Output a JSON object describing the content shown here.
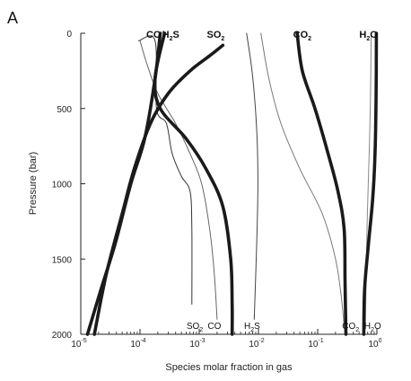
{
  "chart_data": {
    "type": "line",
    "panel_label": "A",
    "xlabel": "Species molar fraction in gas",
    "ylabel": "Pressure (bar)",
    "x_scale": "log",
    "xlim": [
      1e-05,
      1
    ],
    "x_ticks": [
      {
        "value": 1e-05,
        "base": "10",
        "exp": "-5"
      },
      {
        "value": 0.0001,
        "base": "10",
        "exp": "-4"
      },
      {
        "value": 0.001,
        "base": "10",
        "exp": "-3"
      },
      {
        "value": 0.01,
        "base": "10",
        "exp": "-2"
      },
      {
        "value": 0.1,
        "base": "10",
        "exp": "-1"
      },
      {
        "value": 1,
        "base": "10",
        "exp": "0"
      }
    ],
    "ylim": [
      0,
      2000
    ],
    "y_inverted": true,
    "y_ticks": [
      "0",
      "500",
      "1000",
      "1500",
      "2000"
    ],
    "grid": false,
    "series": [
      {
        "name": "CO",
        "style": "thick",
        "color": "#1a1a1a",
        "x": [
          0.00022,
          0.00018,
          0.00012,
          7e-05,
          3.8e-05,
          2.2e-05,
          1.3e-05
        ],
        "y": [
          0,
          300,
          700,
          1000,
          1400,
          1700,
          2000
        ]
      },
      {
        "name": "H2S",
        "style": "thick",
        "color": "#1a1a1a",
        "x": [
          0.00026,
          0.00018,
          0.00022,
          0.0006,
          0.0013,
          0.0025,
          0.0034,
          0.0036,
          0.0036
        ],
        "y": [
          0,
          300,
          500,
          700,
          900,
          1150,
          1500,
          1800,
          2000
        ]
      },
      {
        "name": "SO2",
        "style": "thick",
        "color": "#1a1a1a",
        "x": [
          0.0025,
          0.0015,
          0.0007,
          0.0003,
          0.00015,
          8e-05,
          5e-05,
          2.7e-05,
          1.7e-05
        ],
        "y": [
          80,
          150,
          250,
          400,
          600,
          900,
          1200,
          1600,
          2000
        ]
      },
      {
        "name": "CO2",
        "style": "thick",
        "color": "#1a1a1a",
        "x": [
          0.045,
          0.055,
          0.09,
          0.15,
          0.22,
          0.28,
          0.29,
          0.3
        ],
        "y": [
          0,
          250,
          500,
          800,
          1050,
          1300,
          1650,
          2000
        ]
      },
      {
        "name": "H2O",
        "style": "thick",
        "color": "#1a1a1a",
        "x": [
          0.98,
          0.97,
          0.93,
          0.85,
          0.72,
          0.62,
          0.6
        ],
        "y": [
          0,
          400,
          800,
          1100,
          1400,
          1700,
          2000
        ]
      },
      {
        "name": "SO2",
        "style": "thin",
        "color": "#333333",
        "x": [
          9.5e-05,
          0.00018,
          0.00019,
          0.00028,
          0.00035,
          0.0005,
          0.0007,
          0.00075,
          0.00075
        ],
        "y": [
          50,
          50,
          500,
          600,
          800,
          950,
          1050,
          1300,
          1800
        ]
      },
      {
        "name": "CO",
        "style": "thin",
        "color": "#666666",
        "x": [
          0.0001,
          0.00013,
          0.0002,
          0.0004,
          0.0007,
          0.0011,
          0.0015,
          0.0018,
          0.002
        ],
        "y": [
          50,
          200,
          400,
          600,
          800,
          1000,
          1300,
          1600,
          1900
        ]
      },
      {
        "name": "H2S",
        "style": "thin",
        "color": "#444444",
        "x": [
          0.0063,
          0.0075,
          0.0085,
          0.0095,
          0.0098,
          0.0095,
          0.009,
          0.0085
        ],
        "y": [
          0,
          200,
          400,
          700,
          1000,
          1300,
          1600,
          1900
        ]
      },
      {
        "name": "CO2",
        "style": "thin",
        "color": "#777777",
        "x": [
          0.011,
          0.015,
          0.024,
          0.05,
          0.12,
          0.2,
          0.25,
          0.28
        ],
        "y": [
          0,
          300,
          600,
          900,
          1200,
          1500,
          1750,
          1950
        ]
      },
      {
        "name": "H2O",
        "style": "thin",
        "color": "#888888",
        "x": [
          0.8,
          0.78,
          0.74,
          0.69,
          0.66,
          0.64
        ],
        "y": [
          0,
          400,
          800,
          1200,
          1600,
          1950
        ]
      }
    ],
    "top_labels": [
      {
        "text": "CO",
        "sub": "",
        "x": 0.00017
      },
      {
        "text": "H",
        "sub": "2",
        "tail": "S",
        "x": 0.00033
      },
      {
        "text": "SO",
        "sub": "2",
        "x": 0.0019
      },
      {
        "text": "CO",
        "sub": "2",
        "x": 0.055
      },
      {
        "text": "H",
        "sub": "2",
        "tail": "O",
        "x": 0.72
      }
    ],
    "bottom_labels": [
      {
        "text": "SO",
        "sub": "2",
        "x": 0.00084
      },
      {
        "text": "CO",
        "sub": "",
        "x": 0.0018
      },
      {
        "text": "H",
        "sub": "2",
        "tail": "S",
        "x": 0.0078
      },
      {
        "text": "CO",
        "sub": "2",
        "x": 0.36
      },
      {
        "text": "H",
        "sub": "2",
        "tail": "O",
        "x": 0.85
      }
    ]
  }
}
